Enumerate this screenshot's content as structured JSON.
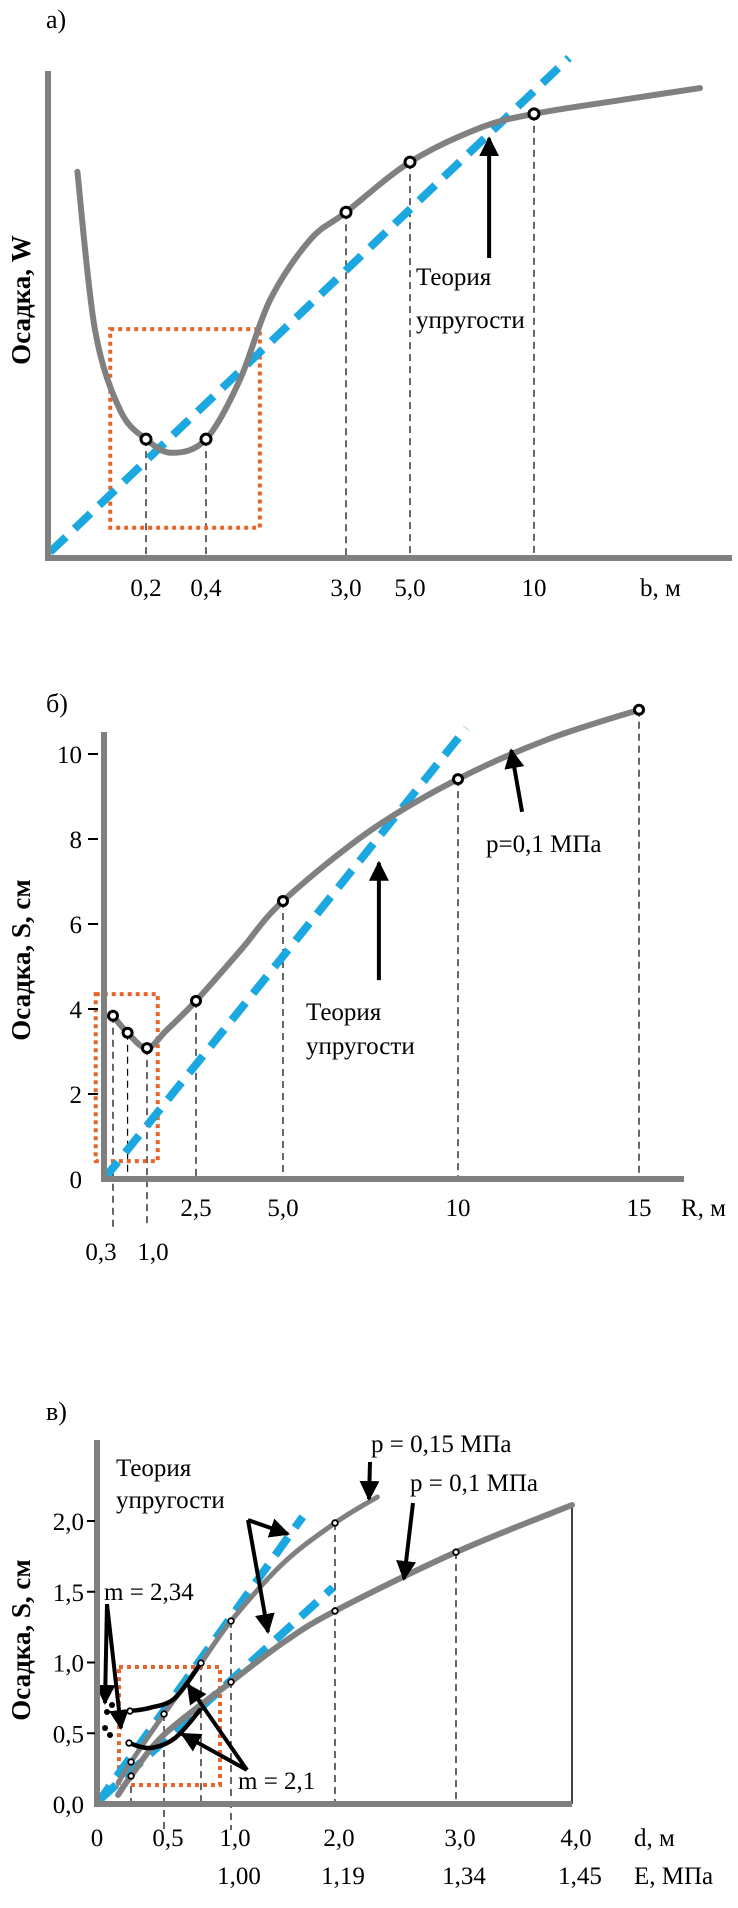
{
  "chart_data": [
    {
      "type": "line",
      "panel_label": "а)",
      "title": "",
      "xlabel": "b, м",
      "ylabel": "Осадка, W",
      "grid": false,
      "x_ticks": [
        "0,2",
        "0,4",
        "3,0",
        "5,0",
        "10"
      ],
      "x_tick_values": [
        0.2,
        0.4,
        3.0,
        5.0,
        10
      ],
      "ylim": [
        0,
        10
      ],
      "series": [
        {
          "name": "Осадка W(b)",
          "curve": [
            [
              0.06,
              7.93
            ],
            [
              0.096,
              4.68
            ],
            [
              0.147,
              3.04
            ],
            [
              0.2,
              2.44
            ],
            [
              0.287,
              2.16
            ],
            [
              0.4,
              2.44
            ],
            [
              1.03,
              3.66
            ],
            [
              1.59,
              5.3
            ],
            [
              2.33,
              6.53
            ],
            [
              3.0,
              7.1
            ],
            [
              5.0,
              8.13
            ],
            [
              7.82,
              8.83
            ],
            [
              10,
              9.12
            ],
            [
              14.3,
              9.4
            ],
            [
              18.3,
              9.65
            ]
          ],
          "points": [
            [
              0.2,
              2.44
            ],
            [
              0.4,
              2.44
            ],
            [
              3.0,
              7.1
            ],
            [
              5.0,
              8.13
            ],
            [
              10,
              9.12
            ]
          ]
        },
        {
          "name": "Теория упругости",
          "style": "dashed",
          "line": [
            [
              0.004,
              0.12
            ],
            [
              11.75,
              10.27
            ]
          ]
        }
      ],
      "highlight_box": {
        "x": [
          0.127,
          1.4
        ],
        "y": [
          0.62,
          4.7
        ]
      },
      "annotations": [
        {
          "text_lines": [
            "Теория",
            "упругости"
          ],
          "arrow_tip": [
            8.19,
            8.62
          ],
          "arrow_tail": [
            8.19,
            6.16
          ]
        }
      ]
    },
    {
      "type": "line",
      "panel_label": "б)",
      "title": "",
      "xlabel": "R, м",
      "ylabel": "Осадка,  S, см",
      "grid": false,
      "x_ticks": [
        "2,5",
        "5,0",
        "10",
        "15"
      ],
      "x_tick_values": [
        2.5,
        5.0,
        10,
        15
      ],
      "x_ticks_lower": [
        "0,3",
        "1,0"
      ],
      "x_ticks_lower_values": [
        0.3,
        1.0
      ],
      "y_ticks": [
        "0",
        "2",
        "4",
        "6",
        "8",
        "10"
      ],
      "y_tick_values": [
        0,
        2,
        4,
        6,
        8,
        10
      ],
      "ylim": [
        0,
        10.8
      ],
      "series": [
        {
          "name": "p=0,1 МПа",
          "curve": [
            [
              0.3,
              3.84
            ],
            [
              0.6,
              3.44
            ],
            [
              1.0,
              3.08
            ],
            [
              1.6,
              3.5
            ],
            [
              2.5,
              4.19
            ],
            [
              3.8,
              5.4
            ],
            [
              5.0,
              6.54
            ],
            [
              7.5,
              8.2
            ],
            [
              10,
              9.41
            ],
            [
              12.5,
              10.35
            ],
            [
              15,
              11.04
            ]
          ],
          "points": [
            [
              0.3,
              3.84
            ],
            [
              0.6,
              3.44
            ],
            [
              1.0,
              3.08
            ],
            [
              2.5,
              4.19
            ],
            [
              5.0,
              6.54
            ],
            [
              10,
              9.41
            ],
            [
              15,
              11.04
            ]
          ]
        },
        {
          "name": "Теория упругости",
          "style": "dashed",
          "line": [
            [
              0.0,
              0.0
            ],
            [
              10.23,
              10.61
            ]
          ]
        }
      ],
      "highlight_box": {
        "x": [
          -0.23,
          1.33
        ],
        "y": [
          0.42,
          4.35
        ]
      },
      "annotations": [
        {
          "text_lines": [
            "Теория",
            "упругости"
          ],
          "arrow_tip": [
            7.74,
            7.44
          ],
          "arrow_tail": [
            7.74,
            4.68
          ]
        },
        {
          "text_lines": [
            "p=0,1 МПа"
          ],
          "arrow_tip": [
            11.47,
            10.09
          ],
          "arrow_tail": [
            11.77,
            8.64
          ]
        }
      ]
    },
    {
      "type": "line",
      "panel_label": "в)",
      "title": "",
      "xlabel": "d, м",
      "xlabel2": "E, МПа",
      "ylabel": "Осадка,  S, см",
      "grid": false,
      "x_ticks": [
        "0",
        "0,5",
        "1,0",
        "2,0",
        "3,0",
        "4,0"
      ],
      "x_tick_values": [
        0,
        0.5,
        1.0,
        2.0,
        3.0,
        4.0
      ],
      "x_ticks_E": [
        "1,00",
        "1,19",
        "1,34",
        "1,45"
      ],
      "x_ticks_E_values": [
        1.0,
        2.0,
        3.0,
        4.0
      ],
      "y_ticks": [
        "0,0",
        "0,5",
        "1,0",
        "1,5",
        "2,0"
      ],
      "y_tick_values": [
        0,
        0.5,
        1.0,
        1.5,
        2.0
      ],
      "ylim": [
        0,
        2.55
      ],
      "series": [
        {
          "name": "p = 0,15 МПа",
          "curve": [
            [
              0.157,
              0.148
            ],
            [
              0.254,
              0.297
            ],
            [
              0.5,
              0.636
            ],
            [
              0.776,
              0.996
            ],
            [
              1.0,
              1.293
            ],
            [
              1.5,
              1.7
            ],
            [
              2.0,
              1.986
            ],
            [
              2.35,
              2.17
            ]
          ],
          "points": [
            [
              0.254,
              0.297
            ],
            [
              0.5,
              0.636
            ],
            [
              0.776,
              0.996
            ],
            [
              1.0,
              1.293
            ],
            [
              2.0,
              1.986
            ]
          ]
        },
        {
          "name": "p = 0,1 МПа",
          "curve": [
            [
              0.157,
              0.064
            ],
            [
              0.254,
              0.198
            ],
            [
              0.5,
              0.49
            ],
            [
              1.0,
              0.862
            ],
            [
              1.5,
              1.14
            ],
            [
              2.0,
              1.364
            ],
            [
              3.0,
              1.78
            ],
            [
              4.0,
              2.113
            ]
          ],
          "points": [
            [
              0.254,
              0.198
            ],
            [
              1.0,
              0.862
            ],
            [
              2.0,
              1.364
            ],
            [
              3.0,
              1.78
            ]
          ]
        },
        {
          "name": "m = 2,34",
          "curve": [
            [
              0.246,
              0.657
            ],
            [
              0.396,
              0.68
            ],
            [
              0.582,
              0.749
            ],
            [
              0.776,
              0.996
            ]
          ],
          "points": [
            [
              0.246,
              0.657
            ]
          ]
        },
        {
          "name": "m = 2,1",
          "curve": [
            [
              0.239,
              0.431
            ],
            [
              0.396,
              0.396
            ],
            [
              0.582,
              0.466
            ],
            [
              0.769,
              0.664
            ]
          ],
          "points": [
            [
              0.239,
              0.431
            ]
          ]
        },
        {
          "name": "Теория упругости (p = 0,15 МПа)",
          "style": "dashed",
          "line": [
            [
              0.0,
              0.0
            ],
            [
              1.69,
              2.03
            ]
          ]
        },
        {
          "name": "Теория упругости (p = 0,1 МПа)",
          "style": "dashed",
          "line": [
            [
              0.02,
              0.03
            ],
            [
              1.98,
              1.53
            ]
          ]
        }
      ],
      "highlight_box": {
        "x": [
          0.164,
          0.918
        ],
        "y": [
          0.134,
          0.968
        ]
      },
      "annotations": [
        {
          "text_lines": [
            "Теория",
            "упругости"
          ]
        },
        {
          "text_lines": [
            "p = 0,15 МПа"
          ]
        },
        {
          "text_lines": [
            "p = 0,1 МПа"
          ]
        },
        {
          "text_lines": [
            "m = 2,34"
          ]
        },
        {
          "text_lines": [
            "m = 2,1"
          ]
        }
      ]
    }
  ]
}
